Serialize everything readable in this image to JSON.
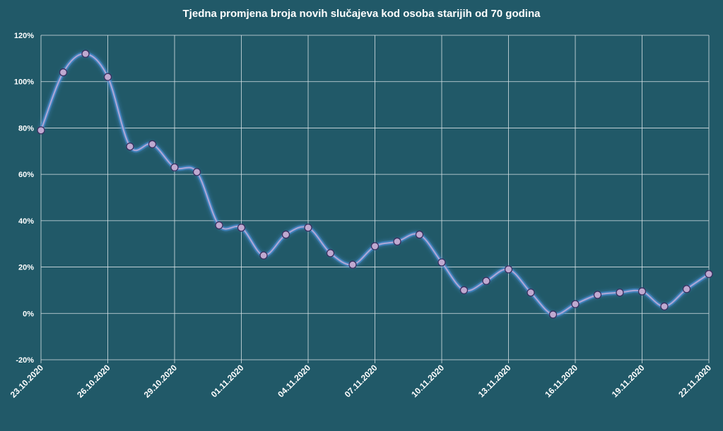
{
  "chart_data": {
    "type": "line",
    "title": "Tjedna promjena broja novih slučajeva kod osoba starijih od 70 godina",
    "xlabel": "",
    "ylabel": "",
    "ylim": [
      -20,
      120
    ],
    "ytick_labels": [
      "120%",
      "100%",
      "80%",
      "60%",
      "40%",
      "20%",
      "0%",
      "-20%"
    ],
    "ytick_values": [
      120,
      100,
      80,
      60,
      40,
      20,
      0,
      -20
    ],
    "xtick_labels": [
      "23.10.2020",
      "26.10.2020",
      "29.10.2020",
      "01.11.2020",
      "04.11.2020",
      "07.11.2020",
      "10.11.2020",
      "13.11.2020",
      "16.11.2020",
      "19.11.2020",
      "22.11.2020"
    ],
    "xtick_index": [
      0,
      3,
      6,
      9,
      12,
      15,
      18,
      21,
      24,
      27,
      30
    ],
    "grid": true,
    "legend": "none",
    "series": [
      {
        "values": [
          79,
          104,
          112,
          102,
          72,
          73,
          63,
          61,
          38,
          37,
          25,
          34,
          37,
          26,
          21,
          29,
          31,
          34,
          22,
          10,
          14,
          19,
          9,
          -0.5,
          4,
          8,
          9,
          9.5,
          3,
          10.5,
          17
        ]
      }
    ],
    "colors": {
      "background": "#215968",
      "grid": "#d8e2e6",
      "line": "#a9a7d8",
      "marker_fill": "#bfa9d0",
      "marker_stroke": "#3a3060",
      "text": "#ffffff"
    }
  }
}
